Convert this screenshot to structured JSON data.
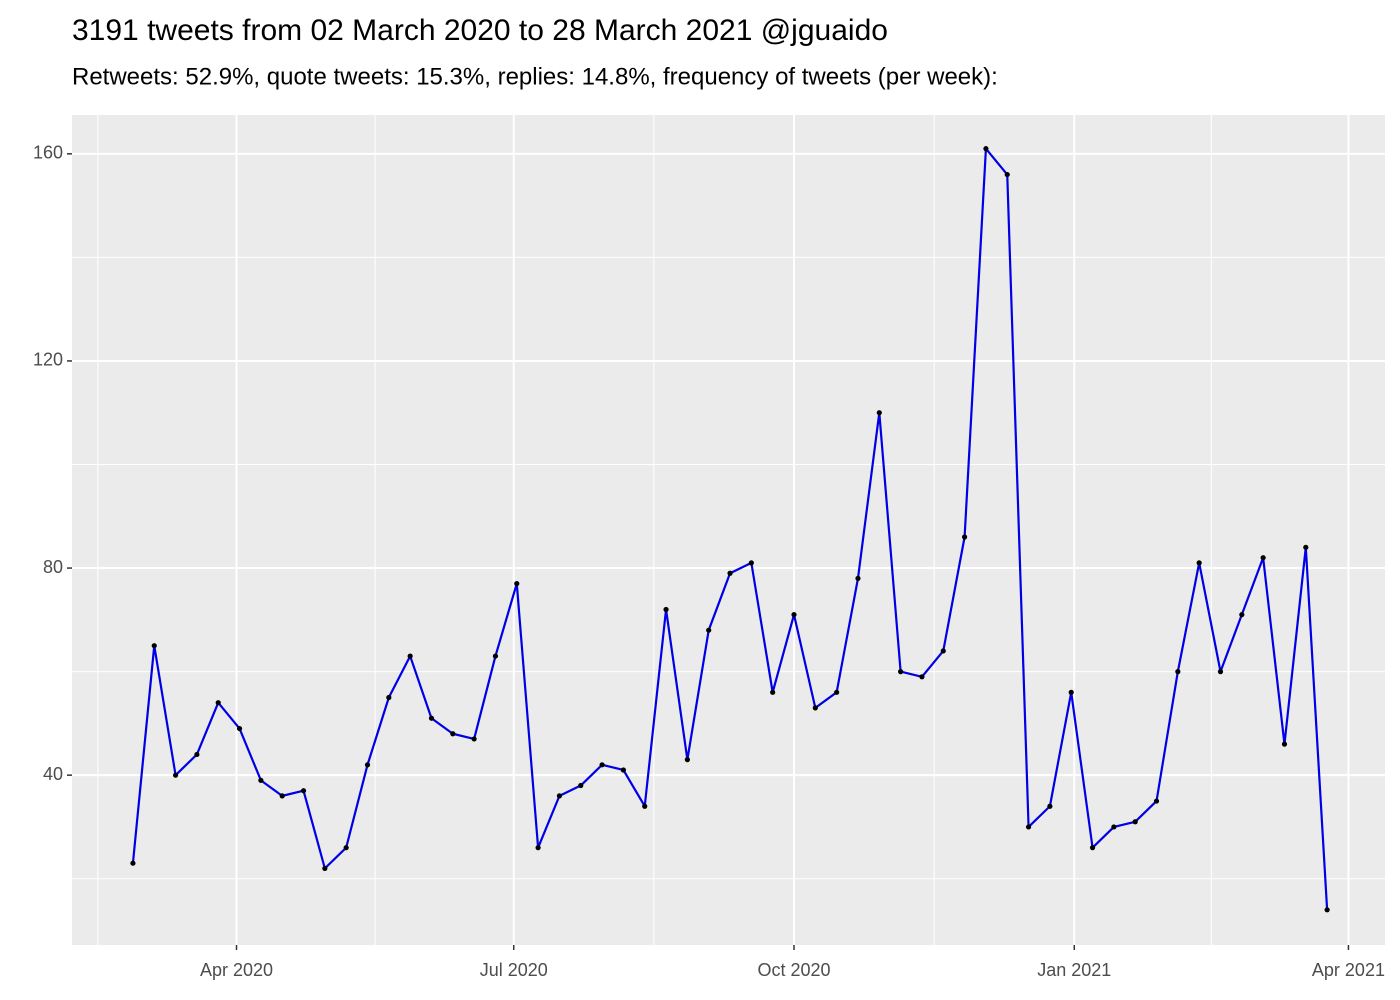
{
  "chart_data": {
    "type": "line",
    "title": "3191 tweets from 02 March 2020 to 28 March 2021 @jguaido",
    "subtitle": "Retweets: 52.9%, quote tweets: 15.3%, replies: 14.8%, frequency of tweets (per week):",
    "x": [
      "2020-02-27",
      "2020-03-05",
      "2020-03-12",
      "2020-03-19",
      "2020-03-26",
      "2020-04-02",
      "2020-04-09",
      "2020-04-16",
      "2020-04-23",
      "2020-04-30",
      "2020-05-07",
      "2020-05-14",
      "2020-05-21",
      "2020-05-28",
      "2020-06-04",
      "2020-06-11",
      "2020-06-18",
      "2020-06-25",
      "2020-07-02",
      "2020-07-09",
      "2020-07-16",
      "2020-07-23",
      "2020-07-30",
      "2020-08-06",
      "2020-08-13",
      "2020-08-20",
      "2020-08-27",
      "2020-09-03",
      "2020-09-10",
      "2020-09-17",
      "2020-09-24",
      "2020-10-01",
      "2020-10-08",
      "2020-10-15",
      "2020-10-22",
      "2020-10-29",
      "2020-11-05",
      "2020-11-12",
      "2020-11-19",
      "2020-11-26",
      "2020-12-03",
      "2020-12-10",
      "2020-12-17",
      "2020-12-24",
      "2020-12-31",
      "2021-01-07",
      "2021-01-14",
      "2021-01-21",
      "2021-01-28",
      "2021-02-04",
      "2021-02-11",
      "2021-02-18",
      "2021-02-25",
      "2021-03-04",
      "2021-03-11",
      "2021-03-18",
      "2021-03-25"
    ],
    "values": [
      23,
      65,
      40,
      44,
      54,
      49,
      39,
      36,
      37,
      22,
      26,
      42,
      55,
      63,
      51,
      48,
      47,
      63,
      77,
      26,
      36,
      38,
      42,
      41,
      34,
      72,
      43,
      68,
      79,
      81,
      56,
      71,
      53,
      56,
      78,
      110,
      60,
      59,
      64,
      86,
      161,
      156,
      30,
      34,
      56,
      26,
      30,
      31,
      35,
      60,
      81,
      60,
      71,
      82,
      46,
      84,
      14
    ],
    "color": "#0000e6",
    "point_color": "#000000",
    "xlim": [
      "2020-02-07",
      "2021-04-13"
    ],
    "xticks": [
      {
        "value": "2020-04-01",
        "label": "Apr 2020"
      },
      {
        "value": "2020-07-01",
        "label": "Jul 2020"
      },
      {
        "value": "2020-10-01",
        "label": "Oct 2020"
      },
      {
        "value": "2021-01-01",
        "label": "Jan 2021"
      },
      {
        "value": "2021-04-01",
        "label": "Apr 2021"
      }
    ],
    "ylim": [
      7.2,
      167.5
    ],
    "yticks": [
      40,
      80,
      120,
      160
    ],
    "grid": true
  }
}
